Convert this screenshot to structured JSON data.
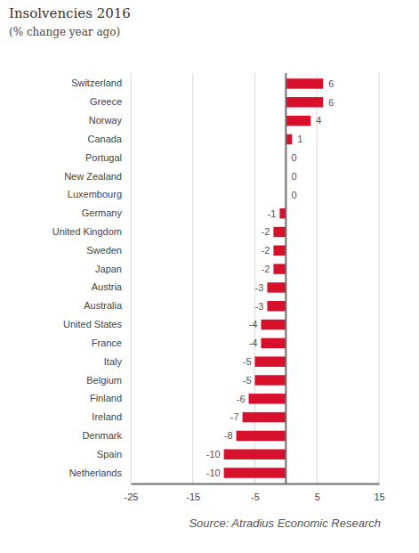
{
  "chart_data": {
    "type": "bar",
    "orientation": "horizontal",
    "title": "Insolvencies 2016",
    "subtitle": "(% change year ago)",
    "source": "Source: Atradius Economic Research",
    "categories": [
      "Switzerland",
      "Greece",
      "Norway",
      "Canada",
      "Portugal",
      "New Zealand",
      "Luxembourg",
      "Germany",
      "United Kingdom",
      "Sweden",
      "Japan",
      "Austria",
      "Australia",
      "United States",
      "France",
      "Italy",
      "Belgium",
      "Finland",
      "Ireland",
      "Denmark",
      "Spain",
      "Netherlands"
    ],
    "values": [
      6,
      6,
      4,
      1,
      0,
      0,
      0,
      -1,
      -2,
      -2,
      -2,
      -3,
      -3,
      -4,
      -4,
      -5,
      -5,
      -6,
      -7,
      -8,
      -10,
      -10
    ],
    "color": "#d7102b",
    "xlim": [
      -25,
      15
    ],
    "xticks": [
      -25,
      -15,
      -5,
      5,
      15
    ],
    "grid": true,
    "data_labels": true
  }
}
